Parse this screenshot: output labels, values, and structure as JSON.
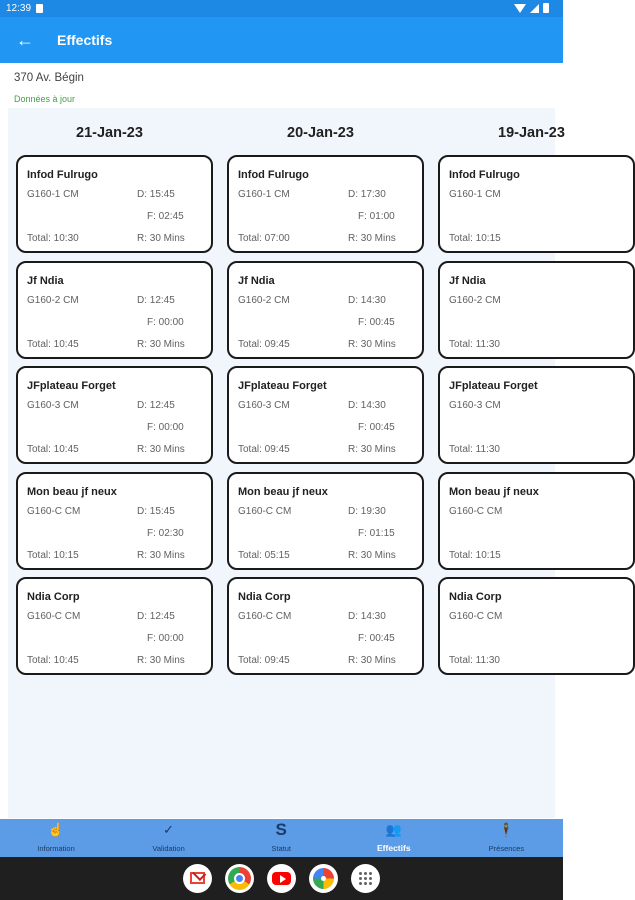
{
  "status_bar": {
    "time": "12:39"
  },
  "app_bar": {
    "back_icon": "arrow-left-icon",
    "title": "Effectifs"
  },
  "site": {
    "address": "370 Av. Bégin",
    "sync_status": "Données à jour"
  },
  "labels": {
    "start_prefix": "D:",
    "end_prefix": "F:",
    "total_prefix": "Total:",
    "break_prefix": "R:"
  },
  "days": [
    {
      "date": "21-Jan-23",
      "shifts": [
        {
          "name": "Infod Fulrugo",
          "code": "G160-1 CM",
          "start": "D:  15:45",
          "end": "F:  02:45",
          "total": "Total: 10:30",
          "break": "R: 30 Mins"
        },
        {
          "name": "Jf Ndia",
          "code": "G160-2 CM",
          "start": "D:  12:45",
          "end": "F:  00:00",
          "total": "Total: 10:45",
          "break": "R: 30 Mins"
        },
        {
          "name": "JFplateau Forget",
          "code": "G160-3 CM",
          "start": "D:  12:45",
          "end": "F:  00:00",
          "total": "Total: 10:45",
          "break": "R: 30 Mins"
        },
        {
          "name": "Mon beau jf neux",
          "code": "G160-C CM",
          "start": "D:  15:45",
          "end": "F:  02:30",
          "total": "Total: 10:15",
          "break": "R: 30 Mins"
        },
        {
          "name": "Ndia Corp",
          "code": "G160-C CM",
          "start": "D:  12:45",
          "end": "F:  00:00",
          "total": "Total: 10:45",
          "break": "R: 30 Mins"
        }
      ]
    },
    {
      "date": "20-Jan-23",
      "shifts": [
        {
          "name": "Infod Fulrugo",
          "code": "G160-1 CM",
          "start": "D:  17:30",
          "end": "F:  01:00",
          "total": "Total: 07:00",
          "break": "R: 30 Mins"
        },
        {
          "name": "Jf Ndia",
          "code": "G160-2 CM",
          "start": "D:  14:30",
          "end": "F:  00:45",
          "total": "Total: 09:45",
          "break": "R: 30 Mins"
        },
        {
          "name": "JFplateau Forget",
          "code": "G160-3 CM",
          "start": "D:  14:30",
          "end": "F:  00:45",
          "total": "Total: 09:45",
          "break": "R: 30 Mins"
        },
        {
          "name": "Mon beau jf neux",
          "code": "G160-C CM",
          "start": "D:  19:30",
          "end": "F:  01:15",
          "total": "Total: 05:15",
          "break": "R: 30 Mins"
        },
        {
          "name": "Ndia Corp",
          "code": "G160-C CM",
          "start": "D:  14:30",
          "end": "F:  00:45",
          "total": "Total: 09:45",
          "break": "R: 30 Mins"
        }
      ]
    },
    {
      "date": "19-Jan-23",
      "shifts": [
        {
          "name": "Infod Fulrugo",
          "code": "G160-1 CM",
          "start": "",
          "end": "",
          "total": "Total: 10:15",
          "break": ""
        },
        {
          "name": "Jf Ndia",
          "code": "G160-2 CM",
          "start": "",
          "end": "",
          "total": "Total: 11:30",
          "break": ""
        },
        {
          "name": "JFplateau Forget",
          "code": "G160-3 CM",
          "start": "",
          "end": "",
          "total": "Total: 11:30",
          "break": ""
        },
        {
          "name": "Mon beau jf neux",
          "code": "G160-C CM",
          "start": "",
          "end": "",
          "total": "Total: 10:15",
          "break": ""
        },
        {
          "name": "Ndia Corp",
          "code": "G160-C CM",
          "start": "",
          "end": "",
          "total": "Total: 11:30",
          "break": ""
        }
      ]
    }
  ],
  "bottom_nav": [
    {
      "label": "Information",
      "icon": "tap-icon",
      "glyph": "☝",
      "active": false
    },
    {
      "label": "Validation",
      "icon": "check-icon",
      "glyph": "✓",
      "active": false
    },
    {
      "label": "Statut",
      "icon": "status-s-icon",
      "glyph": "S",
      "active": false
    },
    {
      "label": "Effectifs",
      "icon": "group-icon",
      "glyph": "👥",
      "active": true
    },
    {
      "label": "Présences",
      "icon": "person-icon",
      "glyph": "🕴",
      "active": false
    }
  ],
  "dock": [
    {
      "name": "gmail-app-icon"
    },
    {
      "name": "chrome-app-icon"
    },
    {
      "name": "youtube-app-icon"
    },
    {
      "name": "photos-app-icon"
    },
    {
      "name": "app-drawer-icon"
    }
  ],
  "colors": {
    "app_bar": "#2196f3",
    "status_bar": "#1e88e5",
    "bottom_nav": "#5c9ce6",
    "content_bg": "#f0f6fc",
    "sync_ok": "#43a047"
  }
}
